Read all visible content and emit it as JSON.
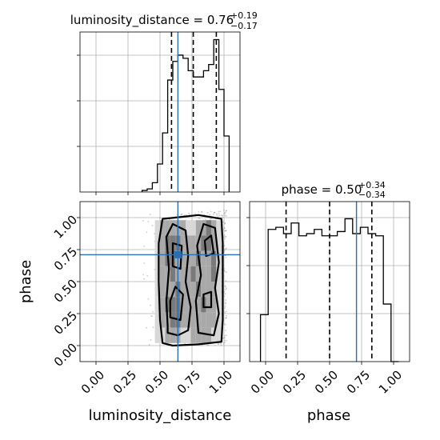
{
  "chart_data": {
    "type": "corner",
    "parameters": [
      "luminosity_distance",
      "phase"
    ],
    "axis_labels": {
      "x_bottom_left": "luminosity_distance",
      "x_bottom_right": "phase",
      "y_lower_left": "phase"
    },
    "tick_labels": [
      "0.00",
      "0.25",
      "0.50",
      "0.75",
      "1.00"
    ],
    "tick_values": [
      0.0,
      0.25,
      0.5,
      0.75,
      1.0
    ],
    "xlim": [
      -0.125,
      1.125
    ],
    "ylim": [
      -0.125,
      1.125
    ],
    "grid": true,
    "truth": {
      "luminosity_distance": 0.64,
      "phase": 0.71,
      "color": "#2c6fb0"
    },
    "marginals": [
      {
        "parameter": "luminosity_distance",
        "title_prefix": "luminosity_distance = ",
        "median": "0.76",
        "plus": "+0.19",
        "minus": "−0.17",
        "quantiles": [
          0.59,
          0.76,
          0.94
        ],
        "bin_edges": [
          0.36,
          0.4,
          0.44,
          0.48,
          0.52,
          0.56,
          0.6,
          0.64,
          0.68,
          0.72,
          0.76,
          0.8,
          0.84,
          0.88,
          0.92,
          0.96,
          1.0,
          1.04
        ],
        "counts": [
          1,
          2,
          6,
          18,
          38,
          72,
          84,
          88,
          86,
          78,
          74,
          74,
          78,
          82,
          98,
          66,
          36
        ]
      },
      {
        "parameter": "phase",
        "title_prefix": "phase = ",
        "median": "0.50",
        "plus": "+0.34",
        "minus": "−0.34",
        "quantiles": [
          0.16,
          0.5,
          0.83
        ],
        "bin_edges": [
          -0.04,
          0.02,
          0.08,
          0.14,
          0.2,
          0.26,
          0.32,
          0.38,
          0.44,
          0.5,
          0.56,
          0.62,
          0.68,
          0.74,
          0.8,
          0.86,
          0.92,
          0.98,
          1.04
        ],
        "counts": [
          22,
          62,
          63,
          60,
          65,
          59,
          60,
          62,
          59,
          59,
          61,
          67,
          60,
          63,
          60,
          59,
          27,
          0
        ]
      }
    ],
    "density_2d": {
      "x": "luminosity_distance",
      "y": "phase",
      "filled_cells": [
        [
          0.48,
          0.92,
          1
        ],
        [
          0.52,
          0.92,
          2
        ],
        [
          0.56,
          0.92,
          2
        ],
        [
          0.6,
          0.92,
          2
        ],
        [
          0.64,
          0.92,
          2
        ],
        [
          0.68,
          0.92,
          2
        ],
        [
          0.72,
          0.92,
          1
        ],
        [
          0.76,
          0.92,
          1
        ],
        [
          0.8,
          0.92,
          2
        ],
        [
          0.84,
          0.92,
          2
        ],
        [
          0.88,
          0.92,
          3
        ],
        [
          0.92,
          0.92,
          2
        ],
        [
          0.96,
          0.92,
          1
        ],
        [
          0.48,
          0.8,
          1
        ],
        [
          0.52,
          0.8,
          2
        ],
        [
          0.56,
          0.8,
          3
        ],
        [
          0.6,
          0.8,
          3
        ],
        [
          0.64,
          0.8,
          3
        ],
        [
          0.68,
          0.8,
          2
        ],
        [
          0.72,
          0.8,
          2
        ],
        [
          0.76,
          0.8,
          2
        ],
        [
          0.8,
          0.8,
          2
        ],
        [
          0.84,
          0.8,
          3
        ],
        [
          0.88,
          0.8,
          3
        ],
        [
          0.92,
          0.8,
          2
        ],
        [
          0.96,
          0.8,
          1
        ],
        [
          0.48,
          0.68,
          1
        ],
        [
          0.52,
          0.68,
          2
        ],
        [
          0.56,
          0.68,
          3
        ],
        [
          0.6,
          0.68,
          3
        ],
        [
          0.64,
          0.68,
          2
        ],
        [
          0.68,
          0.68,
          2
        ],
        [
          0.72,
          0.68,
          2
        ],
        [
          0.76,
          0.68,
          2
        ],
        [
          0.8,
          0.68,
          3
        ],
        [
          0.84,
          0.68,
          2
        ],
        [
          0.88,
          0.68,
          2
        ],
        [
          0.92,
          0.68,
          3
        ],
        [
          0.96,
          0.68,
          1
        ],
        [
          0.48,
          0.56,
          1
        ],
        [
          0.52,
          0.56,
          2
        ],
        [
          0.56,
          0.56,
          2
        ],
        [
          0.6,
          0.56,
          3
        ],
        [
          0.64,
          0.56,
          2
        ],
        [
          0.68,
          0.56,
          2
        ],
        [
          0.72,
          0.56,
          2
        ],
        [
          0.76,
          0.56,
          3
        ],
        [
          0.8,
          0.56,
          2
        ],
        [
          0.84,
          0.56,
          2
        ],
        [
          0.88,
          0.56,
          2
        ],
        [
          0.92,
          0.56,
          3
        ],
        [
          0.96,
          0.56,
          1
        ],
        [
          0.48,
          0.44,
          1
        ],
        [
          0.52,
          0.44,
          2
        ],
        [
          0.56,
          0.44,
          2
        ],
        [
          0.6,
          0.44,
          2
        ],
        [
          0.64,
          0.44,
          3
        ],
        [
          0.68,
          0.44,
          2
        ],
        [
          0.72,
          0.44,
          2
        ],
        [
          0.76,
          0.44,
          2
        ],
        [
          0.8,
          0.44,
          3
        ],
        [
          0.84,
          0.44,
          2
        ],
        [
          0.88,
          0.44,
          2
        ],
        [
          0.92,
          0.44,
          2
        ],
        [
          0.96,
          0.44,
          1
        ],
        [
          0.48,
          0.32,
          1
        ],
        [
          0.52,
          0.32,
          2
        ],
        [
          0.56,
          0.32,
          3
        ],
        [
          0.6,
          0.32,
          3
        ],
        [
          0.64,
          0.32,
          3
        ],
        [
          0.68,
          0.32,
          2
        ],
        [
          0.72,
          0.32,
          2
        ],
        [
          0.76,
          0.32,
          2
        ],
        [
          0.8,
          0.32,
          2
        ],
        [
          0.84,
          0.32,
          3
        ],
        [
          0.88,
          0.32,
          2
        ],
        [
          0.92,
          0.32,
          2
        ],
        [
          0.96,
          0.32,
          1
        ],
        [
          0.48,
          0.2,
          1
        ],
        [
          0.52,
          0.2,
          2
        ],
        [
          0.56,
          0.2,
          2
        ],
        [
          0.6,
          0.2,
          3
        ],
        [
          0.64,
          0.2,
          3
        ],
        [
          0.68,
          0.2,
          2
        ],
        [
          0.72,
          0.2,
          2
        ],
        [
          0.76,
          0.2,
          2
        ],
        [
          0.8,
          0.2,
          2
        ],
        [
          0.84,
          0.2,
          2
        ],
        [
          0.88,
          0.2,
          2
        ],
        [
          0.92,
          0.2,
          2
        ],
        [
          0.96,
          0.2,
          1
        ],
        [
          0.48,
          0.08,
          1
        ],
        [
          0.52,
          0.08,
          1
        ],
        [
          0.56,
          0.08,
          2
        ],
        [
          0.6,
          0.08,
          2
        ],
        [
          0.64,
          0.08,
          2
        ],
        [
          0.68,
          0.08,
          1
        ],
        [
          0.72,
          0.08,
          1
        ],
        [
          0.76,
          0.08,
          2
        ],
        [
          0.8,
          0.08,
          2
        ],
        [
          0.84,
          0.08,
          2
        ],
        [
          0.88,
          0.08,
          2
        ],
        [
          0.92,
          0.08,
          1
        ],
        [
          0.96,
          0.08,
          1
        ]
      ],
      "cell_size": [
        0.04,
        0.12
      ],
      "density_shades": [
        "#d8d8d8",
        "#a9a9a9",
        "#7a7a7a"
      ],
      "outer_contour": [
        [
          0.52,
          0.02
        ],
        [
          0.6,
          0.0
        ],
        [
          0.8,
          0.01
        ],
        [
          0.98,
          0.03
        ],
        [
          0.99,
          0.2
        ],
        [
          0.99,
          0.5
        ],
        [
          0.99,
          0.8
        ],
        [
          0.98,
          0.99
        ],
        [
          0.8,
          1.02
        ],
        [
          0.62,
          1.0
        ],
        [
          0.52,
          0.99
        ],
        [
          0.49,
          0.8
        ],
        [
          0.49,
          0.5
        ],
        [
          0.5,
          0.2
        ]
      ],
      "inner_contours": [
        [
          [
            0.56,
            0.1
          ],
          [
            0.64,
            0.08
          ],
          [
            0.72,
            0.12
          ],
          [
            0.74,
            0.3
          ],
          [
            0.7,
            0.5
          ],
          [
            0.72,
            0.7
          ],
          [
            0.7,
            0.9
          ],
          [
            0.6,
            0.95
          ],
          [
            0.55,
            0.85
          ],
          [
            0.57,
            0.6
          ],
          [
            0.55,
            0.35
          ],
          [
            0.56,
            0.15
          ]
        ],
        [
          [
            0.8,
            0.1
          ],
          [
            0.92,
            0.08
          ],
          [
            0.96,
            0.25
          ],
          [
            0.93,
            0.45
          ],
          [
            0.96,
            0.65
          ],
          [
            0.93,
            0.92
          ],
          [
            0.84,
            0.95
          ],
          [
            0.79,
            0.78
          ],
          [
            0.82,
            0.55
          ],
          [
            0.78,
            0.35
          ]
        ],
        [
          [
            0.58,
            0.22
          ],
          [
            0.66,
            0.2
          ],
          [
            0.68,
            0.4
          ],
          [
            0.62,
            0.46
          ],
          [
            0.58,
            0.35
          ]
        ],
        [
          [
            0.6,
            0.62
          ],
          [
            0.66,
            0.6
          ],
          [
            0.67,
            0.78
          ],
          [
            0.6,
            0.8
          ]
        ],
        [
          [
            0.84,
            0.3
          ],
          [
            0.9,
            0.3
          ],
          [
            0.9,
            0.42
          ],
          [
            0.84,
            0.4
          ]
        ],
        [
          [
            0.86,
            0.7
          ],
          [
            0.92,
            0.72
          ],
          [
            0.9,
            0.86
          ],
          [
            0.85,
            0.82
          ]
        ]
      ],
      "scatter_x_range": [
        0.36,
        1.02
      ],
      "scatter_y_range": [
        0.0,
        1.06
      ]
    }
  }
}
